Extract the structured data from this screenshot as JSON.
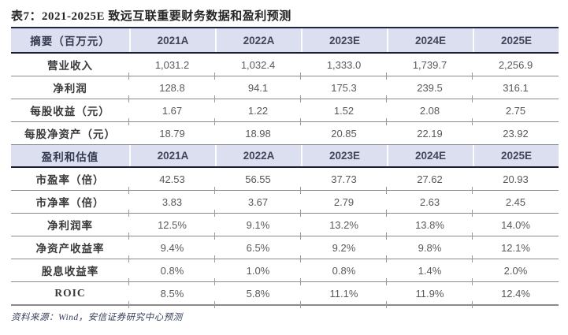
{
  "title": "表7：2021-2025E 致远互联重要财务数据和盈利预测",
  "colors": {
    "header_bg": "#dcdff0",
    "dark_rule": "#191f33",
    "gray_rule": "#8a8a8a",
    "value_text": "#595959",
    "footer_text": "#39425e"
  },
  "table": {
    "section1": {
      "header": [
        "摘要（百万元）",
        "2021A",
        "2022A",
        "2023E",
        "2024E",
        "2025E"
      ],
      "rows": [
        {
          "label": "营业收入",
          "values": [
            "1,031.2",
            "1,032.4",
            "1,333.0",
            "1,739.7",
            "2,256.9"
          ]
        },
        {
          "label": "净利润",
          "values": [
            "128.8",
            "94.1",
            "175.3",
            "239.5",
            "316.1"
          ]
        },
        {
          "label": "每股收益（元）",
          "values": [
            "1.67",
            "1.22",
            "1.52",
            "2.08",
            "2.75"
          ]
        },
        {
          "label": "每股净资产（元）",
          "values": [
            "18.79",
            "18.98",
            "20.85",
            "22.19",
            "23.92"
          ]
        }
      ]
    },
    "section2": {
      "header": [
        "盈利和估值",
        "2021A",
        "2022A",
        "2023E",
        "2024E",
        "2025E"
      ],
      "rows": [
        {
          "label": "市盈率（倍）",
          "values": [
            "42.53",
            "56.55",
            "37.73",
            "27.62",
            "20.93"
          ]
        },
        {
          "label": "市净率（倍）",
          "values": [
            "3.83",
            "3.67",
            "2.79",
            "2.63",
            "2.45"
          ]
        },
        {
          "label": "净利润率",
          "values": [
            "12.5%",
            "9.1%",
            "13.2%",
            "13.8%",
            "14.0%"
          ]
        },
        {
          "label": "净资产收益率",
          "values": [
            "9.4%",
            "6.5%",
            "9.2%",
            "9.8%",
            "12.1%"
          ]
        },
        {
          "label": "股息收益率",
          "values": [
            "0.8%",
            "1.0%",
            "0.8%",
            "1.4%",
            "2.0%"
          ]
        },
        {
          "label": "ROIC",
          "values": [
            "8.5%",
            "5.8%",
            "11.1%",
            "11.9%",
            "12.4%"
          ]
        }
      ]
    }
  },
  "footer": "资料来源：Wind，安信证券研究中心预测"
}
